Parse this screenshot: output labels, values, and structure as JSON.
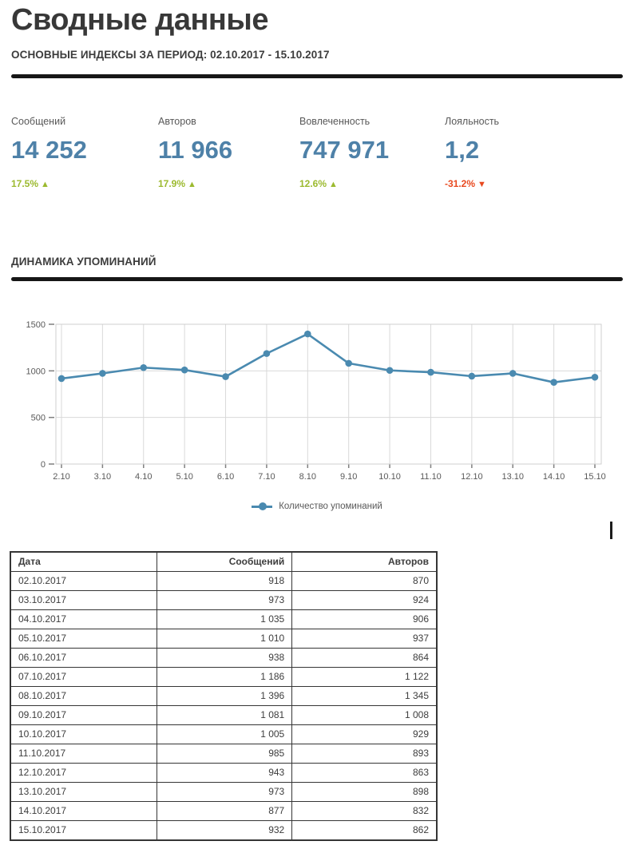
{
  "page": {
    "title": "Сводные данные"
  },
  "sections": {
    "indexes": {
      "title": "ОСНОВНЫЕ ИНДЕКСЫ ЗА ПЕРИОД: 02.10.2017 - 15.10.2017"
    },
    "dynamics": {
      "title": "ДИНАМИКА УПОМИНАНИЙ"
    }
  },
  "kpis": [
    {
      "label": "Сообщений",
      "value": "14 252",
      "delta": "17.5%",
      "direction": "up"
    },
    {
      "label": "Авторов",
      "value": "11 966",
      "delta": "17.9%",
      "direction": "up"
    },
    {
      "label": "Вовлеченность",
      "value": "747 971",
      "delta": "12.6%",
      "direction": "up"
    },
    {
      "label": "Лояльность",
      "value": "1,2",
      "delta": "-31.2%",
      "direction": "down"
    }
  ],
  "icons": {
    "up_arrow": "▲",
    "down_arrow": "▼"
  },
  "colors": {
    "accent_number": "#4e81a8",
    "positive": "#9cba2f",
    "negative": "#e8491f",
    "line": "#4a8ab0",
    "grid": "#d9d9d9",
    "axis_text": "#595959",
    "tick": "#7f7f7f",
    "plot_border": "#cfcfcf",
    "table_border": "#353535",
    "rule": "#161616"
  },
  "chart_data": {
    "type": "line",
    "title": "",
    "xlabel": "",
    "ylabel": "",
    "categories": [
      "2.10",
      "3.10",
      "4.10",
      "5.10",
      "6.10",
      "7.10",
      "8.10",
      "9.10",
      "10.10",
      "11.10",
      "12.10",
      "13.10",
      "14.10",
      "15.10"
    ],
    "series": [
      {
        "name": "Количество упоминаний",
        "values": [
          918,
          973,
          1035,
          1010,
          938,
          1186,
          1396,
          1081,
          1005,
          985,
          943,
          973,
          877,
          932
        ]
      }
    ],
    "ylim": [
      0,
      1500
    ],
    "yticks": [
      0,
      500,
      1000,
      1500
    ],
    "grid": true,
    "marker": "circle",
    "legend_position": "bottom",
    "line_color": "#4a8ab0"
  },
  "table": {
    "columns": [
      {
        "label": "Дата",
        "align": "left"
      },
      {
        "label": "Сообщений",
        "align": "right"
      },
      {
        "label": "Авторов",
        "align": "right"
      }
    ],
    "rows": [
      [
        "02.10.2017",
        "918",
        "870"
      ],
      [
        "03.10.2017",
        "973",
        "924"
      ],
      [
        "04.10.2017",
        "1 035",
        "906"
      ],
      [
        "05.10.2017",
        "1 010",
        "937"
      ],
      [
        "06.10.2017",
        "938",
        "864"
      ],
      [
        "07.10.2017",
        "1 186",
        "1 122"
      ],
      [
        "08.10.2017",
        "1 396",
        "1 345"
      ],
      [
        "09.10.2017",
        "1 081",
        "1 008"
      ],
      [
        "10.10.2017",
        "1 005",
        "929"
      ],
      [
        "11.10.2017",
        "985",
        "893"
      ],
      [
        "12.10.2017",
        "943",
        "863"
      ],
      [
        "13.10.2017",
        "973",
        "898"
      ],
      [
        "14.10.2017",
        "877",
        "832"
      ],
      [
        "15.10.2017",
        "932",
        "862"
      ]
    ]
  }
}
